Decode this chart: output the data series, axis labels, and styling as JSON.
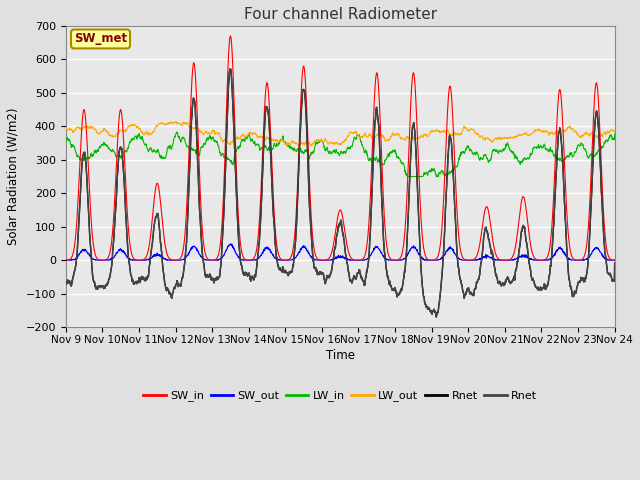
{
  "title": "Four channel Radiometer",
  "ylabel": "Solar Radiation (W/m2)",
  "xlabel": "Time",
  "xlim": [
    0,
    15
  ],
  "ylim": [
    -200,
    700
  ],
  "yticks": [
    -200,
    -100,
    0,
    100,
    200,
    300,
    400,
    500,
    600,
    700
  ],
  "xtick_labels": [
    "Nov 9",
    "Nov 10",
    "Nov 11",
    "Nov 12",
    "Nov 13",
    "Nov 14",
    "Nov 15",
    "Nov 16",
    "Nov 17",
    "Nov 18",
    "Nov 19",
    "Nov 20",
    "Nov 21",
    "Nov 22",
    "Nov 23",
    "Nov 24"
  ],
  "background_color": "#e0e0e0",
  "plot_bg_color": "#e8e8e8",
  "grid_color": "#ffffff",
  "annotation_text": "SW_met",
  "annotation_bg": "#ffff99",
  "annotation_border": "#aa8800",
  "legend_entries": [
    "SW_in",
    "SW_out",
    "LW_in",
    "LW_out",
    "Rnet",
    "Rnet"
  ],
  "legend_colors": [
    "#ff0000",
    "#0000ff",
    "#00bb00",
    "#ffaa00",
    "#000000",
    "#444444"
  ],
  "sw_in_peaks": [
    450,
    450,
    230,
    590,
    670,
    530,
    580,
    150,
    560,
    560,
    520,
    160,
    190,
    510,
    530
  ],
  "sw_out_scale": 0.07,
  "lw_in_base": 370,
  "lw_out_base": 385,
  "rnet_night": -80,
  "figsize": [
    6.4,
    4.8
  ],
  "dpi": 100
}
